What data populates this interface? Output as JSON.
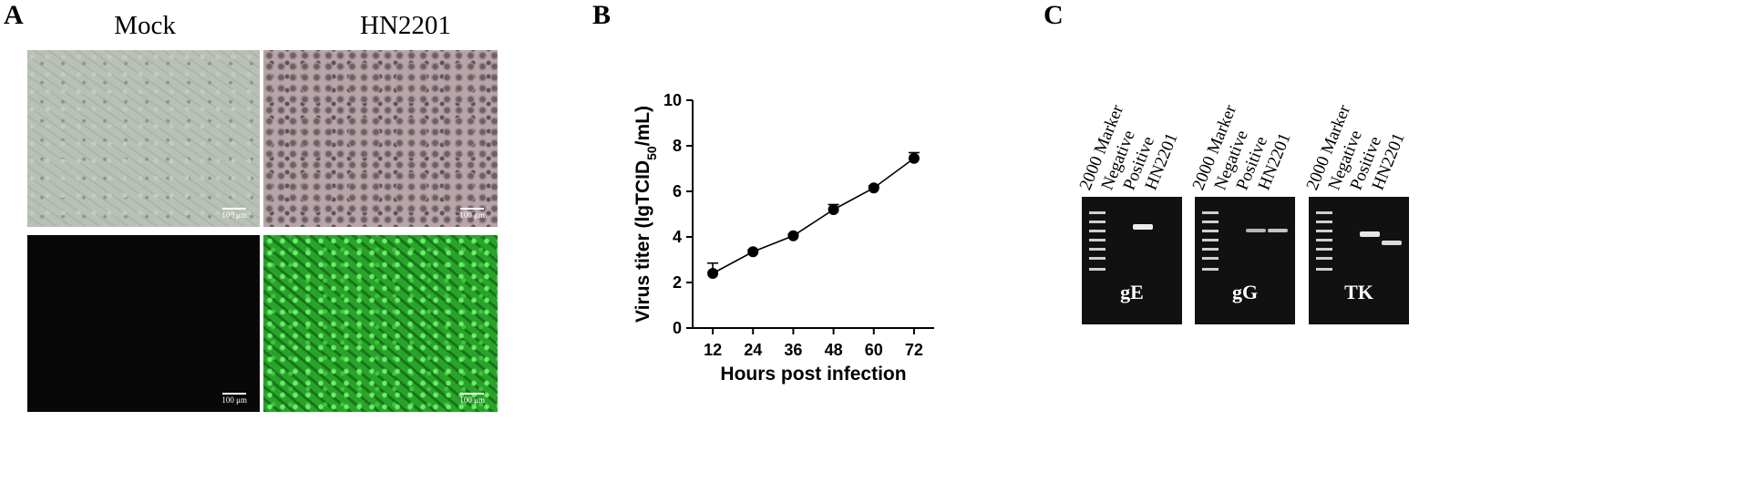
{
  "panels": {
    "a": {
      "letter": "A",
      "col1": "Mock",
      "col2": "HN2201",
      "scale": "100 μm"
    },
    "b": {
      "letter": "B"
    },
    "c": {
      "letter": "C"
    }
  },
  "chart_data": {
    "type": "line",
    "xlabel": "Hours post infection",
    "ylabel_prefix": "Virus titer (lgTCID",
    "ylabel_sub": "50",
    "ylabel_suffix": "/mL)",
    "x": [
      12,
      24,
      36,
      48,
      60,
      72
    ],
    "y": [
      2.4,
      3.35,
      4.05,
      5.2,
      6.15,
      7.45
    ],
    "err": [
      0.45,
      0.08,
      0.08,
      0.22,
      0.08,
      0.25
    ],
    "xticks": [
      "12",
      "24",
      "36",
      "48",
      "60",
      "72"
    ],
    "yticks": [
      "0",
      "2",
      "4",
      "6",
      "8",
      "10"
    ],
    "ylim": [
      0,
      10
    ],
    "grid": false
  },
  "gels": [
    {
      "label": "gE",
      "lanes": [
        "2000 Marker",
        "Negative",
        "Positive",
        "HN2201"
      ]
    },
    {
      "label": "gG",
      "lanes": [
        "2000 Marker",
        "Negative",
        "Positive",
        "HN2201"
      ]
    },
    {
      "label": "TK",
      "lanes": [
        "2000 Marker",
        "Negative",
        "Positive",
        "HN2201"
      ]
    }
  ]
}
